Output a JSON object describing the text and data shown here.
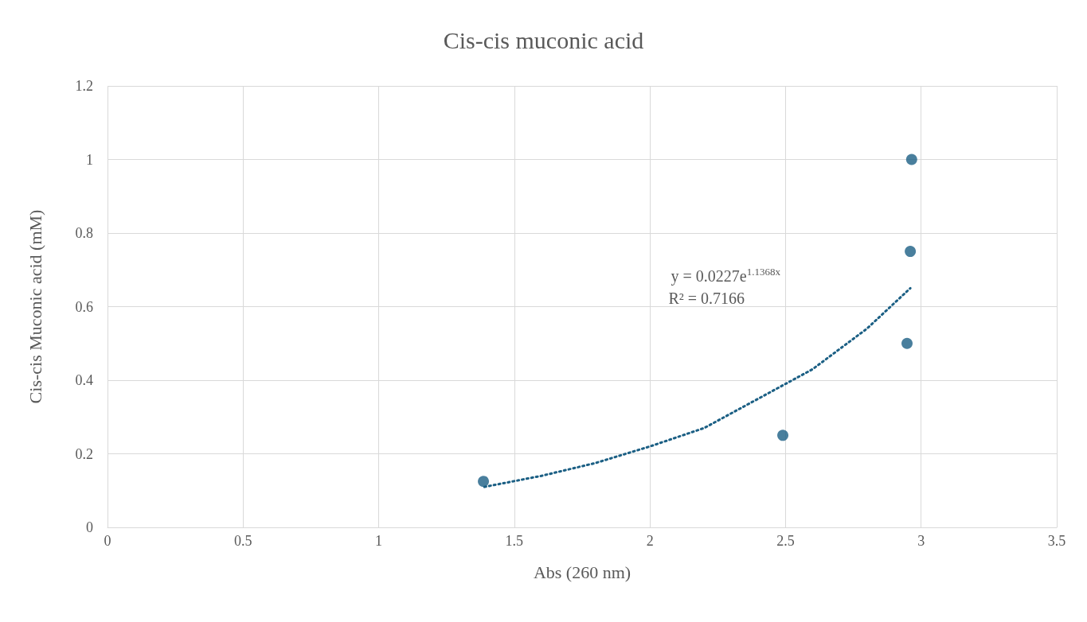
{
  "chart_data": {
    "type": "scatter",
    "title": "Cis-cis muconic acid",
    "xlabel": "Abs (260 nm)",
    "ylabel": "Cis-cis Muconic acid (mM)",
    "series": [
      {
        "color": "#1b5f84",
        "x": [
          1.386,
          2.49,
          2.948,
          2.96,
          2.965
        ],
        "values": [
          0.125,
          0.25,
          0.5,
          0.75,
          1.0
        ],
        "marker": "circle"
      },
      {
        "type": "line",
        "color": "#1b5f84",
        "x": [
          1.39,
          1.6,
          1.8,
          2.0,
          2.2,
          2.4,
          2.6,
          2.8,
          2.96
        ],
        "values": [
          0.11,
          0.14,
          0.175,
          0.22,
          0.27,
          0.35,
          0.43,
          0.54,
          0.65
        ],
        "marker": "none",
        "line_style": "dotted"
      }
    ],
    "annotations": [
      "y = 0.0227e$^{1.1368x}$",
      "R² = 0.7166"
    ],
    "xlim": [
      0,
      3.5
    ],
    "xticks": [
      0,
      0.5,
      1,
      1.5,
      2,
      2.5,
      3,
      3.5
    ],
    "ylim": [
      0,
      1.2
    ],
    "yticks": [
      0,
      0.2,
      0.4,
      0.6,
      0.8,
      1,
      1.2
    ],
    "grid": true
  }
}
